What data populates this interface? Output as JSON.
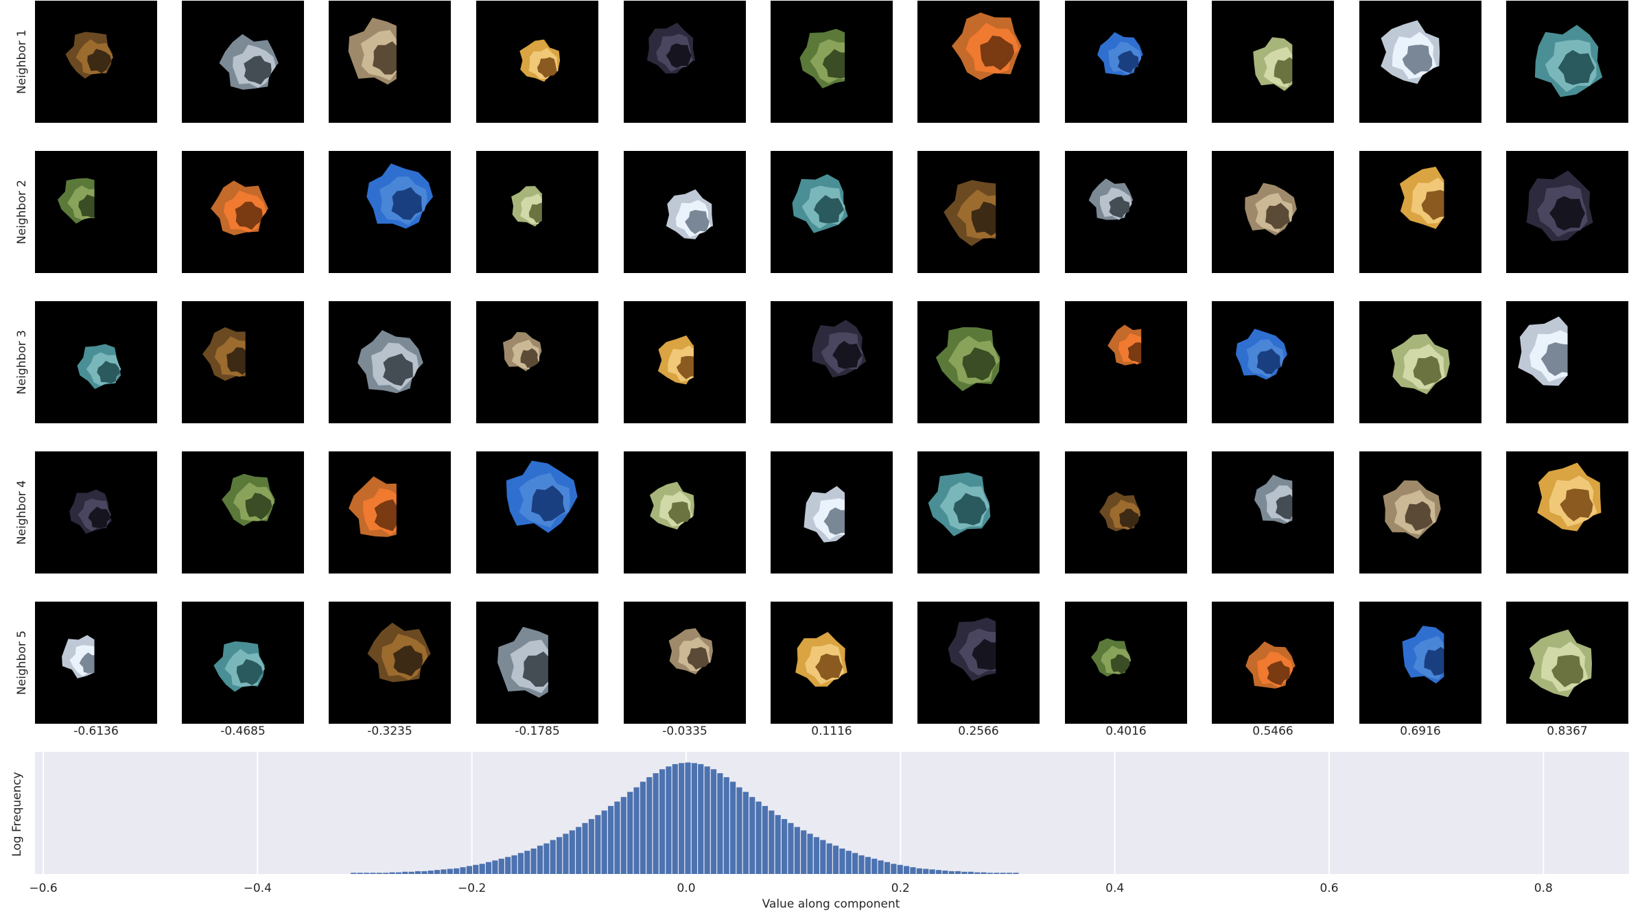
{
  "grid": {
    "row_labels": [
      "Neighbor 1",
      "Neighbor 2",
      "Neighbor 3",
      "Neighbor 4",
      "Neighbor 5"
    ],
    "column_values": [
      "-0.6136",
      "-0.4685",
      "-0.3235",
      "-0.1785",
      "-0.0335",
      "0.1116",
      "0.2566",
      "0.4016",
      "0.5466",
      "0.6916",
      "0.8367"
    ]
  },
  "chart_data": {
    "type": "bar",
    "title": "",
    "xlabel": "Value along component",
    "ylabel": "Log Frequency",
    "xlim": [
      -0.62,
      0.88
    ],
    "x_ticks": [
      -0.6,
      -0.4,
      -0.2,
      0.0,
      0.2,
      0.4,
      0.6,
      0.8
    ],
    "x_tick_labels": [
      "−0.6",
      "−0.4",
      "−0.2",
      "0.0",
      "0.2",
      "0.4",
      "0.6",
      "0.8"
    ],
    "ylim": [
      0,
      1
    ],
    "grid": true,
    "bar_color": "#4c72b0",
    "background_color": "#eaeaf2",
    "bin_width": 0.006,
    "bins": [
      {
        "x": -0.31,
        "v": 0.01
      },
      {
        "x": -0.304,
        "v": 0.01
      },
      {
        "x": -0.298,
        "v": 0.01
      },
      {
        "x": -0.292,
        "v": 0.01
      },
      {
        "x": -0.286,
        "v": 0.01
      },
      {
        "x": -0.28,
        "v": 0.01
      },
      {
        "x": -0.274,
        "v": 0.014
      },
      {
        "x": -0.268,
        "v": 0.014
      },
      {
        "x": -0.262,
        "v": 0.019
      },
      {
        "x": -0.256,
        "v": 0.019
      },
      {
        "x": -0.25,
        "v": 0.024
      },
      {
        "x": -0.244,
        "v": 0.024
      },
      {
        "x": -0.238,
        "v": 0.029
      },
      {
        "x": -0.232,
        "v": 0.034
      },
      {
        "x": -0.226,
        "v": 0.039
      },
      {
        "x": -0.22,
        "v": 0.044
      },
      {
        "x": -0.214,
        "v": 0.048
      },
      {
        "x": -0.208,
        "v": 0.058
      },
      {
        "x": -0.202,
        "v": 0.068
      },
      {
        "x": -0.196,
        "v": 0.078
      },
      {
        "x": -0.19,
        "v": 0.087
      },
      {
        "x": -0.184,
        "v": 0.102
      },
      {
        "x": -0.178,
        "v": 0.116
      },
      {
        "x": -0.172,
        "v": 0.131
      },
      {
        "x": -0.166,
        "v": 0.146
      },
      {
        "x": -0.16,
        "v": 0.16
      },
      {
        "x": -0.154,
        "v": 0.18
      },
      {
        "x": -0.148,
        "v": 0.199
      },
      {
        "x": -0.142,
        "v": 0.218
      },
      {
        "x": -0.136,
        "v": 0.243
      },
      {
        "x": -0.13,
        "v": 0.262
      },
      {
        "x": -0.124,
        "v": 0.291
      },
      {
        "x": -0.118,
        "v": 0.316
      },
      {
        "x": -0.112,
        "v": 0.345
      },
      {
        "x": -0.106,
        "v": 0.374
      },
      {
        "x": -0.1,
        "v": 0.403
      },
      {
        "x": -0.094,
        "v": 0.437
      },
      {
        "x": -0.088,
        "v": 0.471
      },
      {
        "x": -0.082,
        "v": 0.505
      },
      {
        "x": -0.076,
        "v": 0.544
      },
      {
        "x": -0.07,
        "v": 0.583
      },
      {
        "x": -0.064,
        "v": 0.621
      },
      {
        "x": -0.058,
        "v": 0.66
      },
      {
        "x": -0.052,
        "v": 0.704
      },
      {
        "x": -0.046,
        "v": 0.743
      },
      {
        "x": -0.04,
        "v": 0.791
      },
      {
        "x": -0.034,
        "v": 0.83
      },
      {
        "x": -0.028,
        "v": 0.864
      },
      {
        "x": -0.022,
        "v": 0.898
      },
      {
        "x": -0.016,
        "v": 0.922
      },
      {
        "x": -0.01,
        "v": 0.942
      },
      {
        "x": -0.004,
        "v": 0.951
      },
      {
        "x": 0.002,
        "v": 0.956
      },
      {
        "x": 0.008,
        "v": 0.951
      },
      {
        "x": 0.014,
        "v": 0.942
      },
      {
        "x": 0.02,
        "v": 0.922
      },
      {
        "x": 0.026,
        "v": 0.898
      },
      {
        "x": 0.032,
        "v": 0.864
      },
      {
        "x": 0.038,
        "v": 0.83
      },
      {
        "x": 0.044,
        "v": 0.791
      },
      {
        "x": 0.05,
        "v": 0.743
      },
      {
        "x": 0.056,
        "v": 0.704
      },
      {
        "x": 0.062,
        "v": 0.66
      },
      {
        "x": 0.068,
        "v": 0.621
      },
      {
        "x": 0.074,
        "v": 0.583
      },
      {
        "x": 0.08,
        "v": 0.544
      },
      {
        "x": 0.086,
        "v": 0.505
      },
      {
        "x": 0.092,
        "v": 0.471
      },
      {
        "x": 0.098,
        "v": 0.437
      },
      {
        "x": 0.104,
        "v": 0.403
      },
      {
        "x": 0.11,
        "v": 0.374
      },
      {
        "x": 0.116,
        "v": 0.345
      },
      {
        "x": 0.122,
        "v": 0.316
      },
      {
        "x": 0.128,
        "v": 0.291
      },
      {
        "x": 0.134,
        "v": 0.262
      },
      {
        "x": 0.14,
        "v": 0.243
      },
      {
        "x": 0.146,
        "v": 0.218
      },
      {
        "x": 0.152,
        "v": 0.199
      },
      {
        "x": 0.158,
        "v": 0.18
      },
      {
        "x": 0.164,
        "v": 0.16
      },
      {
        "x": 0.17,
        "v": 0.146
      },
      {
        "x": 0.176,
        "v": 0.131
      },
      {
        "x": 0.182,
        "v": 0.116
      },
      {
        "x": 0.188,
        "v": 0.102
      },
      {
        "x": 0.194,
        "v": 0.087
      },
      {
        "x": 0.2,
        "v": 0.078
      },
      {
        "x": 0.206,
        "v": 0.068
      },
      {
        "x": 0.212,
        "v": 0.058
      },
      {
        "x": 0.218,
        "v": 0.048
      },
      {
        "x": 0.224,
        "v": 0.044
      },
      {
        "x": 0.23,
        "v": 0.039
      },
      {
        "x": 0.236,
        "v": 0.034
      },
      {
        "x": 0.242,
        "v": 0.029
      },
      {
        "x": 0.248,
        "v": 0.024
      },
      {
        "x": 0.254,
        "v": 0.024
      },
      {
        "x": 0.26,
        "v": 0.019
      },
      {
        "x": 0.266,
        "v": 0.019
      },
      {
        "x": 0.272,
        "v": 0.014
      },
      {
        "x": 0.278,
        "v": 0.014
      },
      {
        "x": 0.284,
        "v": 0.01
      },
      {
        "x": 0.29,
        "v": 0.01
      },
      {
        "x": 0.296,
        "v": 0.01
      },
      {
        "x": 0.302,
        "v": 0.01
      },
      {
        "x": 0.308,
        "v": 0.01
      }
    ]
  }
}
